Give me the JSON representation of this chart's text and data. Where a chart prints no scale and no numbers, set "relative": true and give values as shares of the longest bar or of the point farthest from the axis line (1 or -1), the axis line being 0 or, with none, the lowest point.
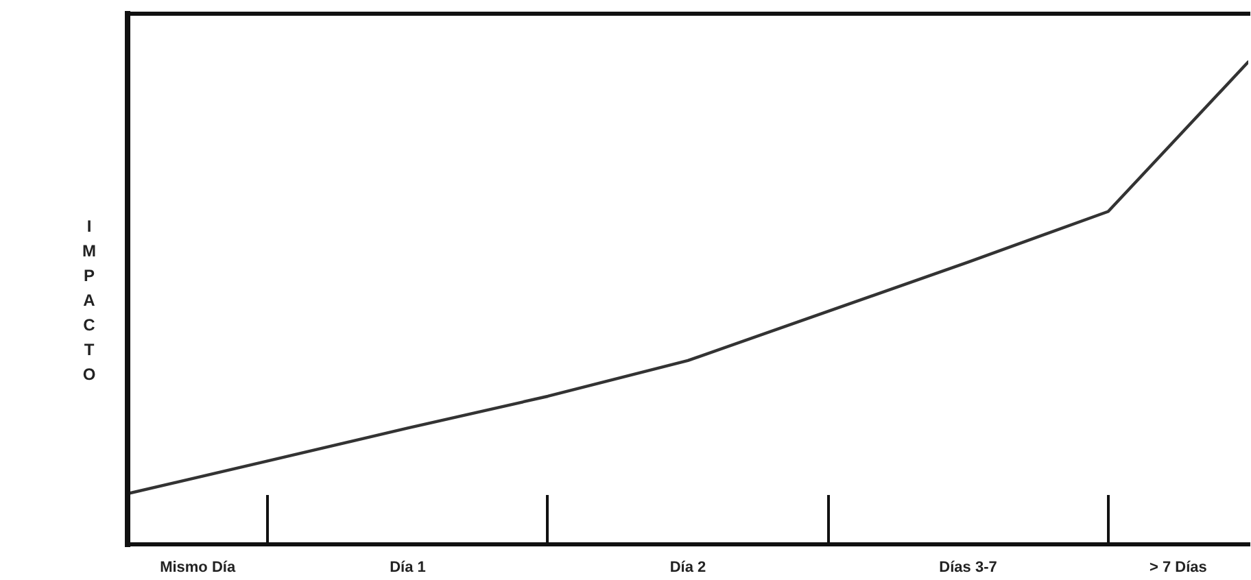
{
  "chart_data": {
    "type": "line",
    "relative": true,
    "ylabel": "IMPACTO",
    "legend": false,
    "marker": "none",
    "line_style": "solid",
    "categories": [
      null,
      null,
      null,
      null,
      null,
      null,
      null,
      null,
      null
    ],
    "annotations": [
      "Mismo Día",
      "Día 1",
      "Día 2",
      "Días 3-7",
      "> 7 Días"
    ],
    "series": [
      {
        "color": "#333333",
        "values": [
          0.105,
          0.173,
          0.241,
          0.307,
          0.381,
          0.483,
          0.585,
          0.69,
          1
        ]
      }
    ]
  }
}
